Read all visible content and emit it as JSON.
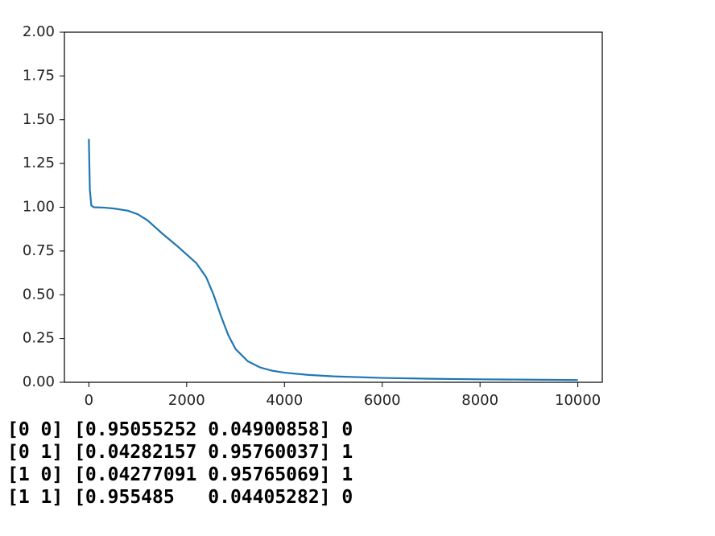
{
  "chart_data": {
    "type": "line",
    "color": "#1f77b4",
    "x": [
      0,
      20,
      50,
      100,
      300,
      500,
      800,
      1000,
      1200,
      1500,
      1800,
      2000,
      2200,
      2400,
      2550,
      2700,
      2850,
      3000,
      3250,
      3500,
      3750,
      4000,
      4500,
      5000,
      6000,
      7000,
      8000,
      9000,
      10000
    ],
    "values": [
      1.39,
      1.1,
      1.01,
      1.0,
      0.998,
      0.993,
      0.98,
      0.96,
      0.925,
      0.85,
      0.78,
      0.73,
      0.68,
      0.6,
      0.5,
      0.38,
      0.27,
      0.19,
      0.12,
      0.085,
      0.066,
      0.055,
      0.042,
      0.034,
      0.025,
      0.02,
      0.017,
      0.015,
      0.013
    ],
    "xlim": [
      -500,
      10500
    ],
    "ylim": [
      0,
      2
    ],
    "xticks": [
      0,
      2000,
      4000,
      6000,
      8000,
      10000
    ],
    "yticks": [
      {
        "value": 0,
        "label": "0.00"
      },
      {
        "value": 0.25,
        "label": "0.25"
      },
      {
        "value": 0.5,
        "label": "0.50"
      },
      {
        "value": 0.75,
        "label": "0.75"
      },
      {
        "value": 1,
        "label": "1.00"
      },
      {
        "value": 1.25,
        "label": "1.25"
      },
      {
        "value": 1.5,
        "label": "1.50"
      },
      {
        "value": 1.75,
        "label": "1.75"
      },
      {
        "value": 2,
        "label": "2.00"
      }
    ]
  },
  "output": {
    "lines": [
      "[0 0] [0.95055252 0.04900858] 0",
      "[0 1] [0.04282157 0.95760037] 1",
      "[1 0] [0.04277091 0.95765069] 1",
      "[1 1] [0.955485   0.04405282] 0"
    ]
  }
}
